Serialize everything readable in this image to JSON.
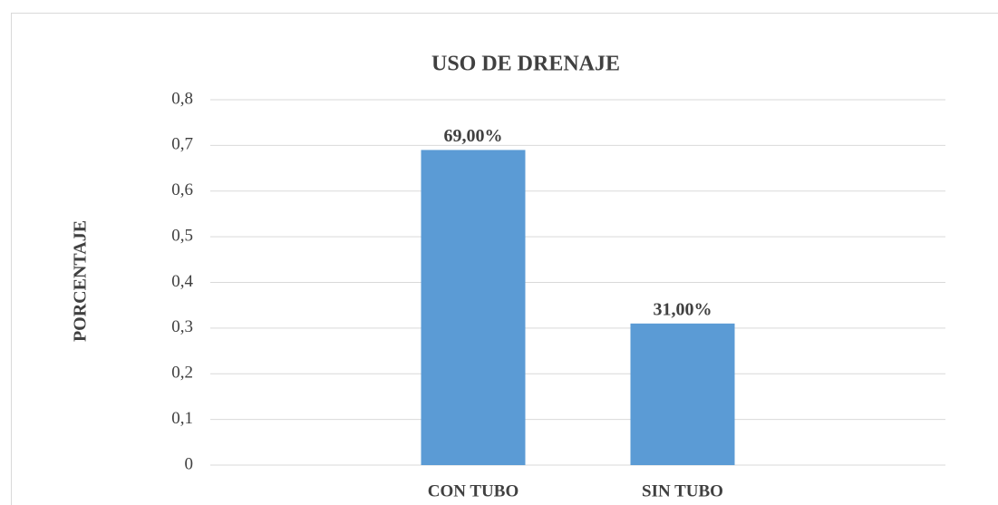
{
  "chart_data": {
    "type": "bar",
    "title": "USO DE DRENAJE",
    "ylabel": "PORCENTAJE",
    "categories": [
      "CON TUBO",
      "SIN TUBO"
    ],
    "values": [
      0.69,
      0.31
    ],
    "value_labels": [
      "69,00%",
      "31,00%"
    ],
    "color": "#5b9bd5",
    "ylim": [
      0,
      0.8
    ],
    "yticks": [
      0,
      {
        "value": 0.1,
        "label": "0,1"
      },
      {
        "value": 0.2,
        "label": "0,2"
      },
      {
        "value": 0.3,
        "label": "0,3"
      },
      {
        "value": 0.4,
        "label": "0,4"
      },
      {
        "value": 0.5,
        "label": "0,5"
      },
      {
        "value": 0.6,
        "label": "0,6"
      },
      {
        "value": 0.7,
        "label": "0,7"
      },
      {
        "value": 0.8,
        "label": "0,8"
      }
    ],
    "grid": true
  }
}
